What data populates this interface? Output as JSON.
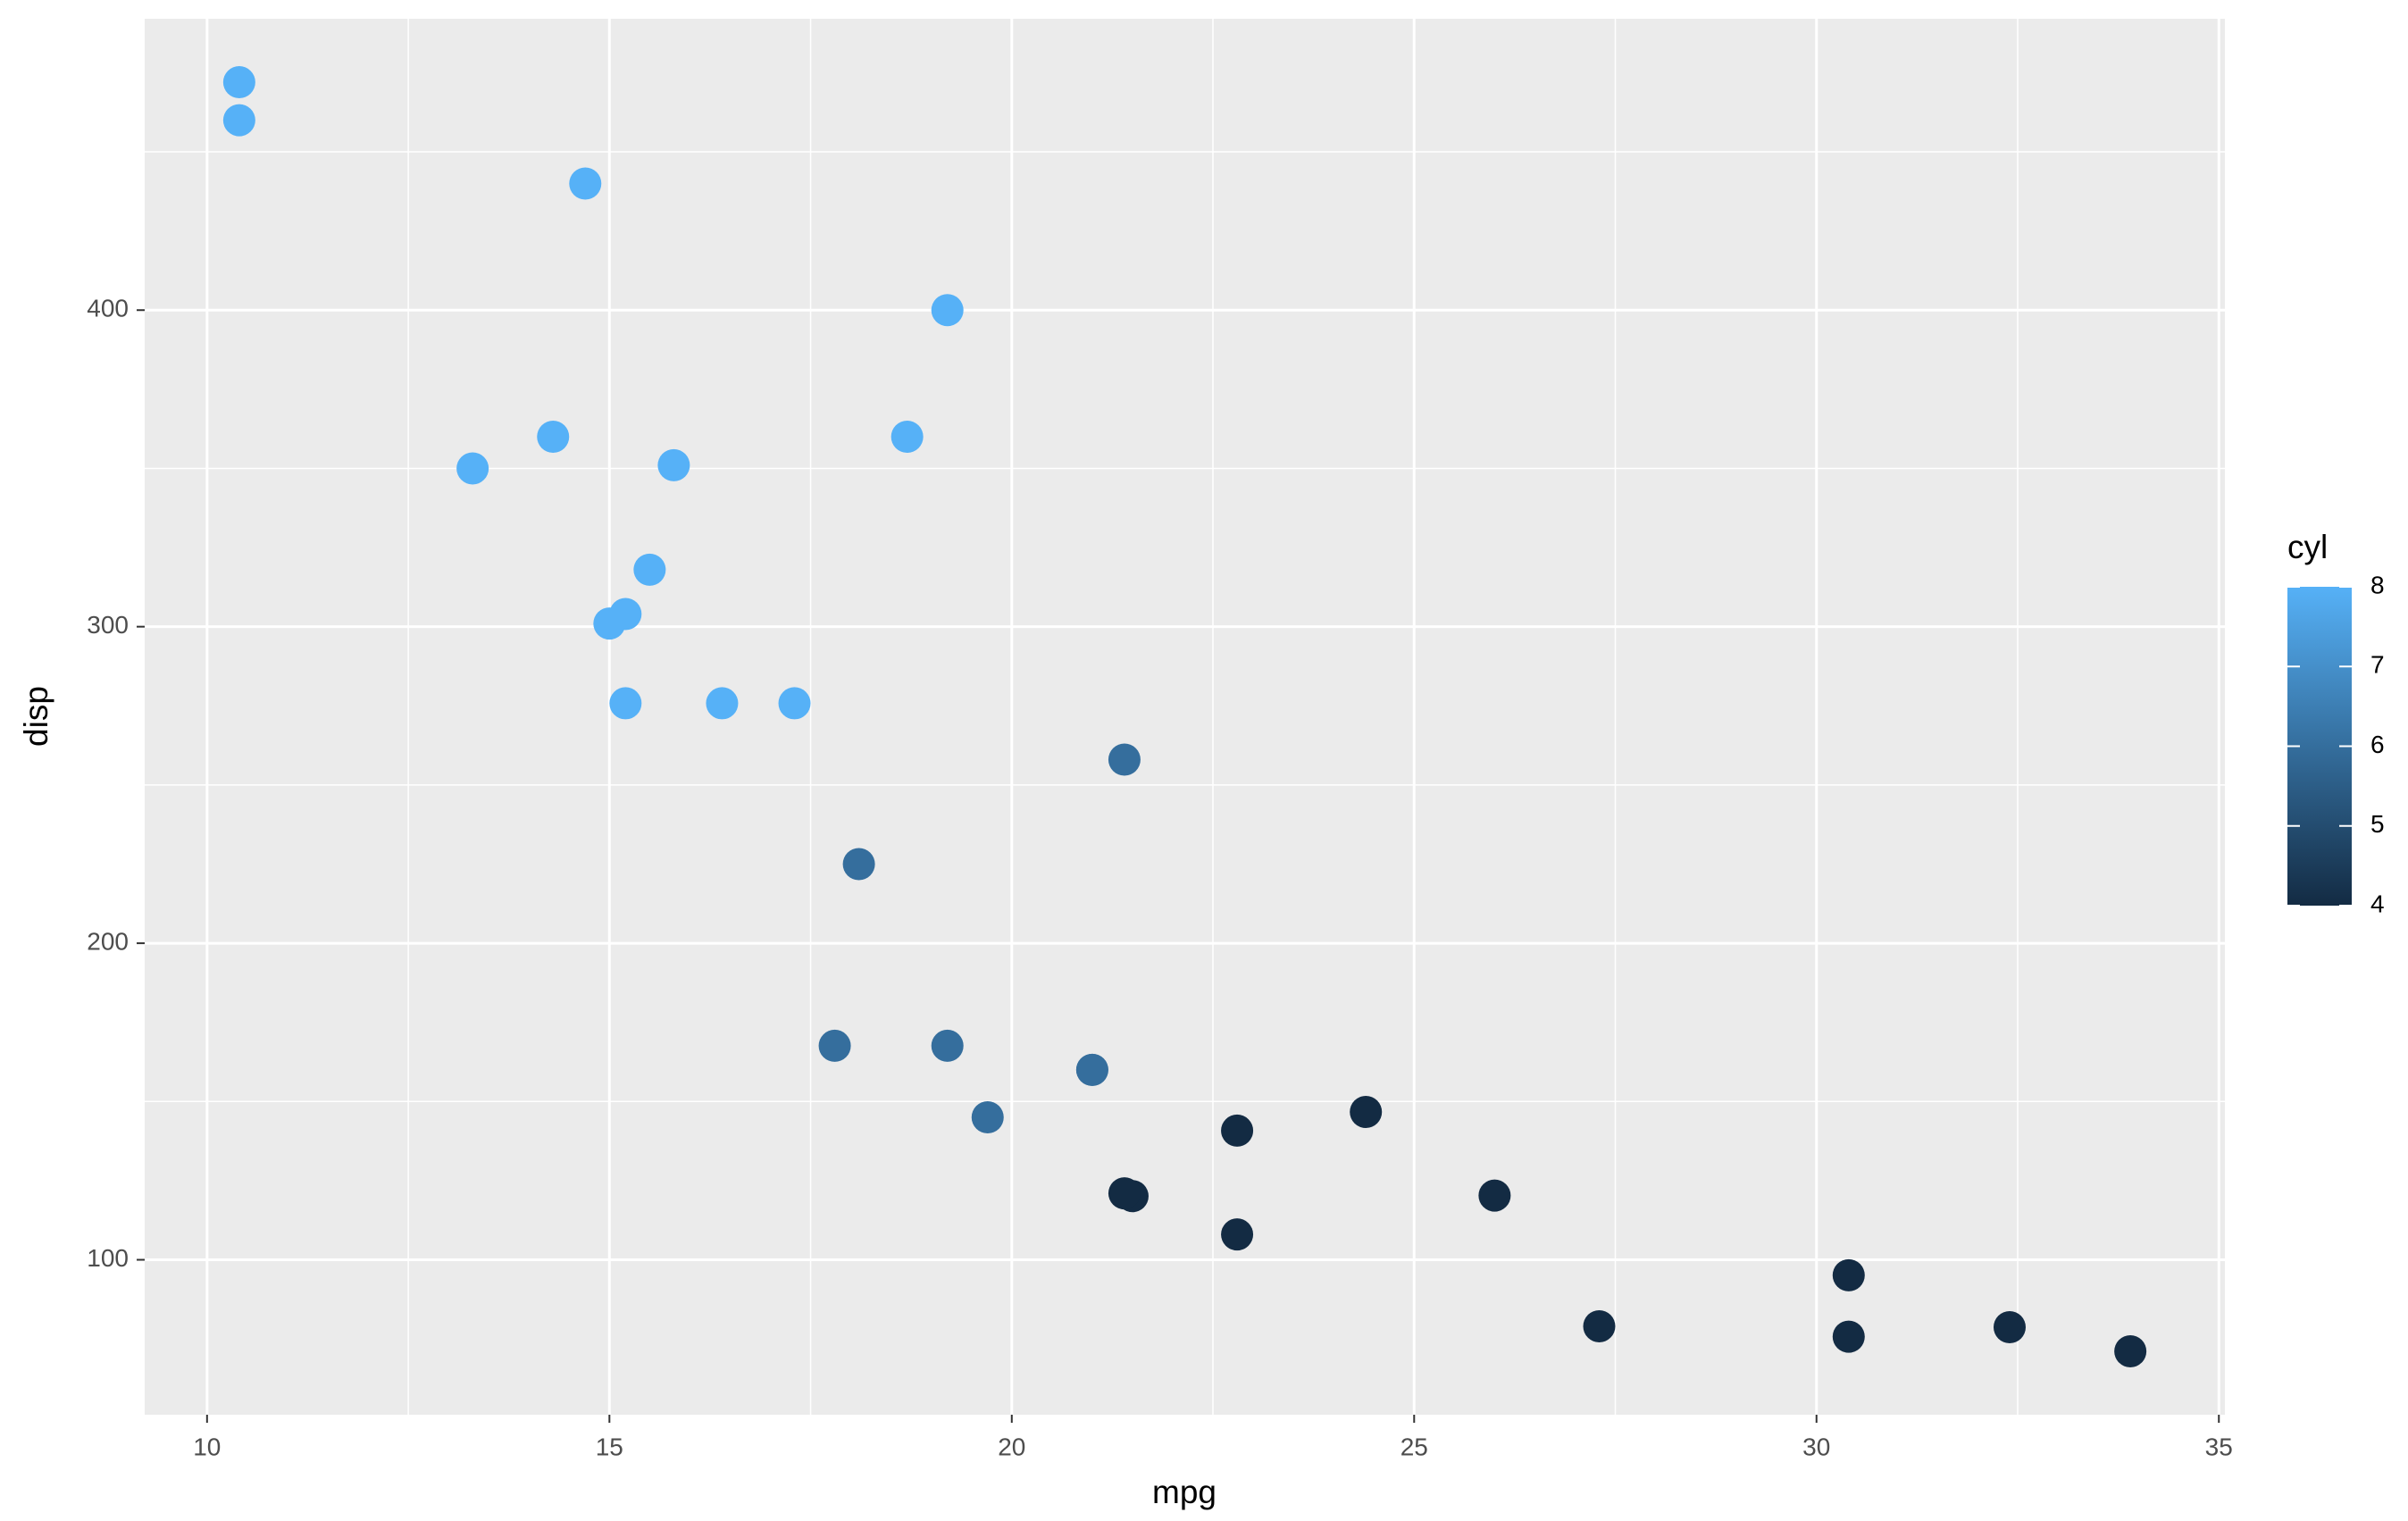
{
  "chart_data": {
    "type": "scatter",
    "x_label": "mpg",
    "y_label": "disp",
    "legend_title": "cyl",
    "x": [
      21.0,
      21.0,
      22.8,
      21.4,
      18.7,
      18.1,
      14.3,
      24.4,
      22.8,
      19.2,
      17.8,
      16.4,
      17.3,
      15.2,
      10.4,
      10.4,
      14.7,
      32.4,
      30.4,
      33.9,
      21.5,
      15.5,
      15.2,
      13.3,
      19.2,
      27.3,
      26.0,
      30.4,
      15.8,
      19.7,
      15.0,
      21.4
    ],
    "y": [
      160,
      160,
      108,
      258,
      360,
      225,
      360,
      146.7,
      140.8,
      167.6,
      167.6,
      275.8,
      275.8,
      275.8,
      472,
      460,
      440,
      78.7,
      75.7,
      71.1,
      120.1,
      318,
      304,
      350,
      400,
      79,
      120.3,
      95.1,
      351,
      145,
      301,
      121
    ],
    "cyl": [
      6,
      6,
      4,
      6,
      8,
      6,
      8,
      4,
      4,
      6,
      6,
      8,
      8,
      8,
      8,
      8,
      8,
      4,
      4,
      4,
      4,
      8,
      8,
      8,
      8,
      4,
      4,
      4,
      8,
      6,
      8,
      4
    ],
    "color_low": "#132B43",
    "color_high": "#56B1F7",
    "color_lim": [
      4,
      8
    ],
    "color_ticks": [
      4,
      5,
      6,
      7,
      8
    ],
    "xlim": [
      9.225,
      35.075
    ],
    "ylim": [
      51.055,
      492.045
    ],
    "xticks": [
      10,
      15,
      20,
      25,
      30,
      35
    ],
    "yticks": [
      100,
      200,
      300,
      400
    ],
    "x_minor_ticks": [
      12.5,
      17.5,
      22.5,
      27.5,
      32.5
    ],
    "y_minor_ticks": [
      150,
      250,
      350,
      450
    ],
    "grid": true
  }
}
